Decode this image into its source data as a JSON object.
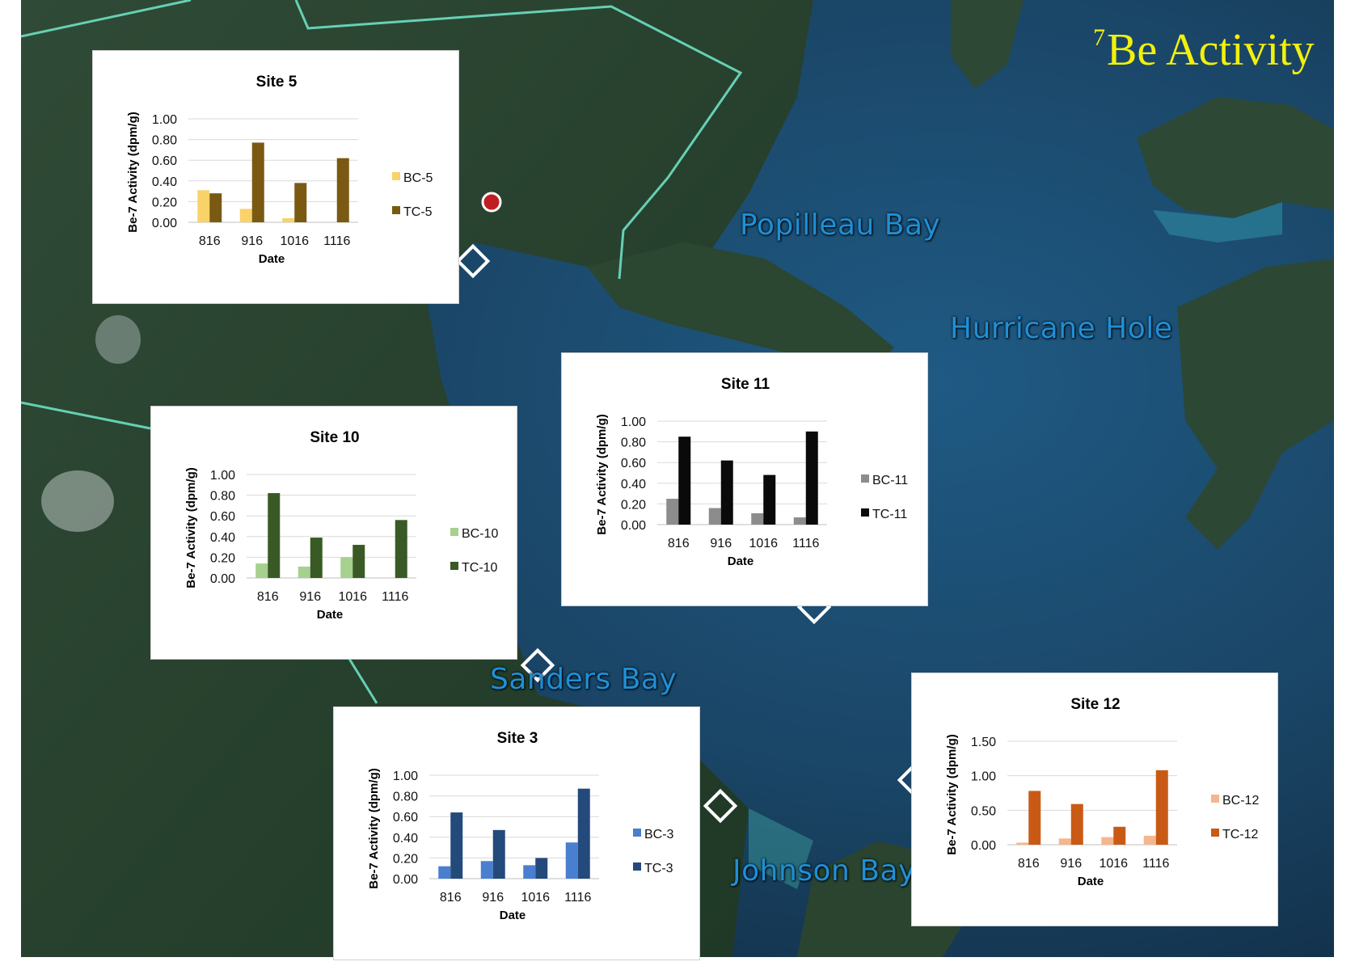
{
  "slide": {
    "title_sup": "7",
    "title_main": "Be Activity",
    "title_color": "#f3f00c"
  },
  "map": {
    "place_labels": {
      "popilleau": "Popilleau Bay",
      "hurricane": "Hurricane Hole",
      "sanders": "Sanders Bay",
      "johnson": "Johnson Bay"
    },
    "label_color": "#1f8fd6",
    "boundary_color": "#66d0b4",
    "water_color": "#1d4a6e",
    "land_color": "#2c4a32"
  },
  "chart_data": [
    {
      "id": "site5",
      "type": "bar",
      "title": "Site 5",
      "xlabel": "Date",
      "ylabel": "Be-7 Activity (dpm/g)",
      "categories": [
        "816",
        "916",
        "1016",
        "1116"
      ],
      "yticks": [
        "0.00",
        "0.20",
        "0.40",
        "0.60",
        "0.80",
        "1.00"
      ],
      "ylim": [
        0,
        1
      ],
      "grid": true,
      "legend_position": "right",
      "series": [
        {
          "name": "BC-5",
          "color": "#f9d26a",
          "values": [
            0.31,
            0.13,
            0.04,
            0
          ]
        },
        {
          "name": "TC-5",
          "color": "#7a5a12",
          "values": [
            0.28,
            0.77,
            0.38,
            0.62
          ]
        }
      ]
    },
    {
      "id": "site10",
      "type": "bar",
      "title": "Site 10",
      "xlabel": "Date",
      "ylabel": "Be-7 Activity (dpm/g)",
      "categories": [
        "816",
        "916",
        "1016",
        "1116"
      ],
      "yticks": [
        "0.00",
        "0.20",
        "0.40",
        "0.60",
        "0.80",
        "1.00"
      ],
      "ylim": [
        0,
        1
      ],
      "grid": true,
      "legend_position": "right",
      "series": [
        {
          "name": "BC-10",
          "color": "#a5d08e",
          "values": [
            0.14,
            0.11,
            0.2,
            0
          ]
        },
        {
          "name": "TC-10",
          "color": "#3a5a25",
          "values": [
            0.82,
            0.39,
            0.32,
            0.56
          ]
        }
      ]
    },
    {
      "id": "site11",
      "type": "bar",
      "title": "Site 11",
      "xlabel": "Date",
      "ylabel": "Be-7 Activity (dpm/g)",
      "categories": [
        "816",
        "916",
        "1016",
        "1116"
      ],
      "yticks": [
        "0.00",
        "0.20",
        "0.40",
        "0.60",
        "0.80",
        "1.00"
      ],
      "ylim": [
        0,
        1
      ],
      "grid": true,
      "legend_position": "right",
      "series": [
        {
          "name": "BC-11",
          "color": "#8c8c8c",
          "values": [
            0.25,
            0.16,
            0.11,
            0.07
          ]
        },
        {
          "name": "TC-11",
          "color": "#0a0a0a",
          "values": [
            0.85,
            0.62,
            0.48,
            0.9
          ]
        }
      ]
    },
    {
      "id": "site3",
      "type": "bar",
      "title": "Site 3",
      "xlabel": "Date",
      "ylabel": "Be-7 Activity (dpm/g)",
      "categories": [
        "816",
        "916",
        "1016",
        "1116"
      ],
      "yticks": [
        "0.00",
        "0.20",
        "0.40",
        "0.60",
        "0.80",
        "1.00"
      ],
      "ylim": [
        0,
        1
      ],
      "grid": true,
      "legend_position": "right",
      "series": [
        {
          "name": "BC-3",
          "color": "#4a7fd0",
          "values": [
            0.12,
            0.17,
            0.13,
            0.35
          ]
        },
        {
          "name": "TC-3",
          "color": "#234a7a",
          "values": [
            0.64,
            0.47,
            0.2,
            0.87
          ]
        }
      ]
    },
    {
      "id": "site12",
      "type": "bar",
      "title": "Site 12",
      "xlabel": "Date",
      "ylabel": "Be-7 Activity (dpm/g)",
      "categories": [
        "816",
        "916",
        "1016",
        "1116"
      ],
      "yticks": [
        "0.00",
        "0.50",
        "1.00",
        "1.50"
      ],
      "ylim": [
        0,
        1.5
      ],
      "grid": true,
      "legend_position": "right",
      "series": [
        {
          "name": "BC-12",
          "color": "#f5b68e",
          "values": [
            0.03,
            0.09,
            0.11,
            0.13
          ]
        },
        {
          "name": "TC-12",
          "color": "#c95a16",
          "values": [
            0.78,
            0.59,
            0.26,
            1.08
          ]
        }
      ]
    }
  ]
}
